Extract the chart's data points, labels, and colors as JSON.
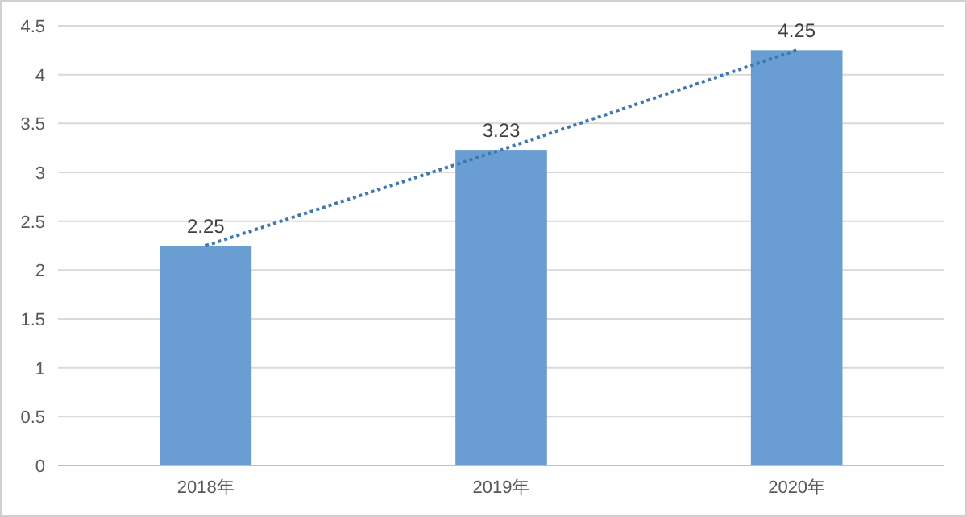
{
  "chart_data": {
    "type": "bar",
    "categories": [
      "2018年",
      "2019年",
      "2020年"
    ],
    "series": [
      {
        "color": "#6a9ed2",
        "values": [
          2.25,
          3.23,
          4.25
        ],
        "value_labels": [
          "2.25",
          "3.23",
          "4.25"
        ]
      },
      {
        "type": "line",
        "color": "#3f78b0",
        "line_style": "dotted",
        "values": [
          2.25,
          3.23,
          4.25
        ]
      }
    ],
    "ylim": [
      0,
      4.5
    ],
    "yticks": [
      0,
      0.5,
      1,
      1.5,
      2,
      2.5,
      3,
      3.5,
      4,
      4.5
    ],
    "grid": "y"
  }
}
